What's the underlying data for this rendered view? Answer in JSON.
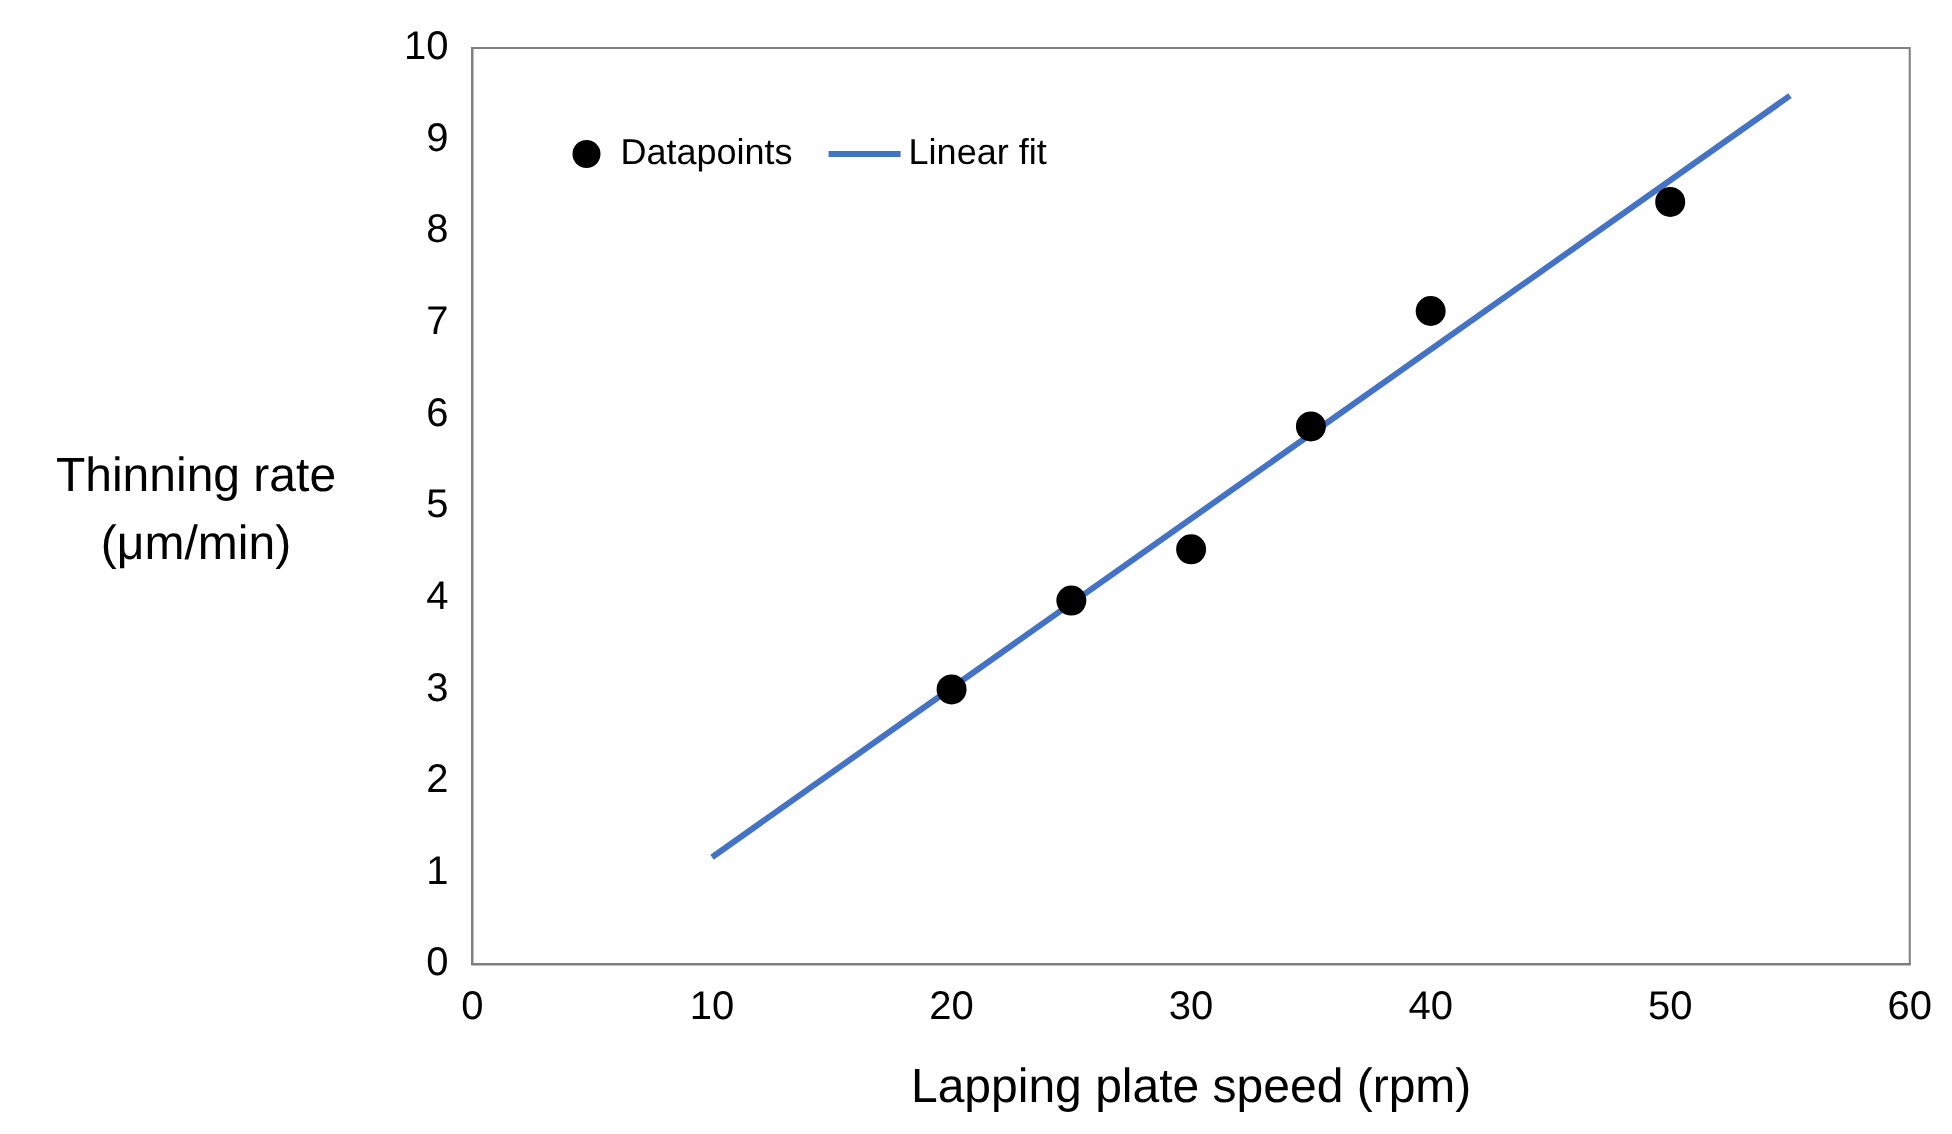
{
  "chart_data": {
    "type": "scatter",
    "xlabel": "Lapping plate speed (rpm)",
    "ylabel": "Thinning rate (μm/min)",
    "xlim": [
      0,
      60
    ],
    "xticks": [
      0,
      10,
      20,
      30,
      40,
      50,
      60
    ],
    "ylim": [
      0,
      10
    ],
    "yticks": [
      0,
      1,
      2,
      3,
      4,
      5,
      6,
      7,
      8,
      9,
      10
    ],
    "grid": false,
    "legend": "top left",
    "series": [
      {
        "name": "Datapoints",
        "type": "scatter",
        "color": "#000000",
        "marker": "circle",
        "x": [
          20,
          25,
          30,
          35,
          40,
          50
        ],
        "values": [
          3.0,
          3.97,
          4.53,
          5.87,
          7.13,
          8.32
        ]
      },
      {
        "name": "Linear fit",
        "type": "line",
        "color": "#4472c4",
        "marker": "none",
        "line_style": "solid",
        "x": [
          10,
          55
        ],
        "values": [
          1.17,
          9.48
        ]
      }
    ]
  }
}
